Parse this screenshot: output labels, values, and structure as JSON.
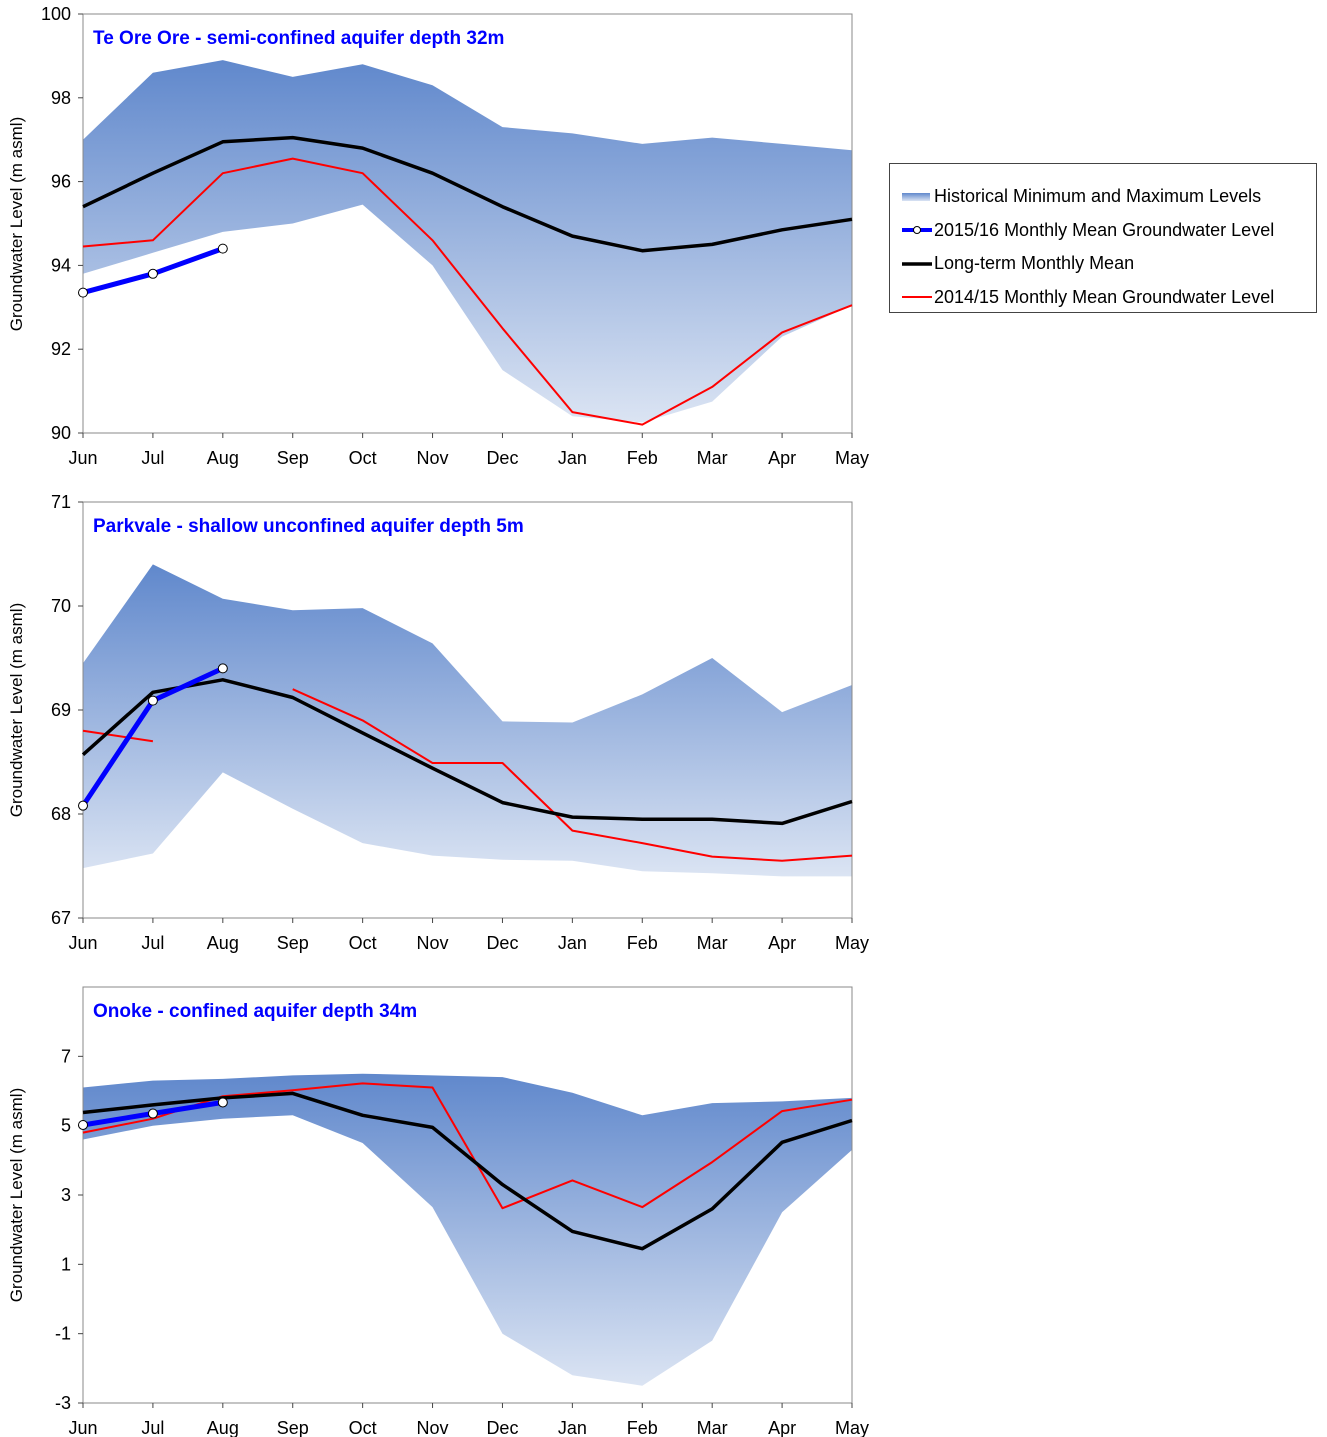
{
  "months": [
    "Jun",
    "Jul",
    "Aug",
    "Sep",
    "Oct",
    "Nov",
    "Dec",
    "Jan",
    "Feb",
    "Mar",
    "Apr",
    "May"
  ],
  "legend": [
    {
      "label": "Historical Minimum and Maximum Levels",
      "symbol": "area"
    },
    {
      "label": "2015/16 Monthly Mean Groundwater Level",
      "symbol": "blue-line-marker"
    },
    {
      "label": "Long-term Monthly Mean",
      "symbol": "black-line"
    },
    {
      "label": "2014/15 Monthly Mean Groundwater Level",
      "symbol": "red-line"
    }
  ],
  "colors": {
    "band_top": "#6088cc",
    "band_bottom": "#dbe4f3",
    "current": "#0000ff",
    "mean": "#000000",
    "previous": "#ff0000",
    "title": "#0000ff"
  },
  "chart_data": [
    {
      "type": "line",
      "title": "Te Ore Ore -  semi-confined aquifer depth 32m",
      "ylabel": "Groundwater Level (m asml)",
      "ylim": [
        90,
        100
      ],
      "yticks": [
        90,
        92,
        94,
        96,
        98,
        100
      ],
      "categories": [
        "Jun",
        "Jul",
        "Aug",
        "Sep",
        "Oct",
        "Nov",
        "Dec",
        "Jan",
        "Feb",
        "Mar",
        "Apr",
        "May"
      ],
      "band_max": [
        97.0,
        98.6,
        98.9,
        98.5,
        98.8,
        98.3,
        97.3,
        97.15,
        96.9,
        97.05,
        96.9,
        96.75
      ],
      "band_min": [
        93.8,
        94.3,
        94.8,
        95.0,
        95.45,
        94.0,
        91.5,
        90.4,
        90.25,
        90.75,
        92.3,
        93.05
      ],
      "series": [
        {
          "name": "Long-term Monthly Mean",
          "role": "mean",
          "values": [
            95.4,
            96.2,
            96.95,
            97.05,
            96.8,
            96.2,
            95.4,
            94.7,
            94.35,
            94.5,
            94.85,
            95.1
          ]
        },
        {
          "name": "2014/15 Monthly Mean Groundwater Level",
          "role": "previous",
          "values": [
            94.45,
            94.6,
            96.2,
            96.55,
            96.2,
            94.6,
            92.5,
            90.5,
            90.2,
            91.1,
            92.4,
            93.05
          ]
        },
        {
          "name": "2015/16 Monthly Mean Groundwater Level",
          "role": "current",
          "values": [
            93.35,
            93.8,
            94.4,
            null,
            null,
            null,
            null,
            null,
            null,
            null,
            null,
            null
          ]
        }
      ]
    },
    {
      "type": "line",
      "title": "Parkvale  -  shallow unconfined aquifer depth 5m",
      "ylabel": "Groundwater Level (m asml)",
      "ylim": [
        67,
        71
      ],
      "yticks": [
        67,
        68,
        69,
        70,
        71
      ],
      "categories": [
        "Jun",
        "Jul",
        "Aug",
        "Sep",
        "Oct",
        "Nov",
        "Dec",
        "Jan",
        "Feb",
        "Mar",
        "Apr",
        "May"
      ],
      "band_max": [
        69.45,
        70.4,
        70.07,
        69.96,
        69.98,
        69.64,
        68.89,
        68.88,
        69.15,
        69.5,
        68.98,
        69.24
      ],
      "band_min": [
        67.48,
        67.62,
        68.4,
        68.05,
        67.72,
        67.6,
        67.56,
        67.55,
        67.45,
        67.43,
        67.4,
        67.4
      ],
      "series": [
        {
          "name": "Long-term Monthly Mean",
          "role": "mean",
          "values": [
            68.57,
            69.17,
            69.29,
            69.12,
            68.78,
            68.44,
            68.11,
            67.97,
            67.95,
            67.95,
            67.91,
            68.12
          ]
        },
        {
          "name": "2014/15 Monthly Mean Groundwater Level",
          "role": "previous",
          "values": [
            68.8,
            68.7,
            null,
            69.2,
            68.9,
            68.49,
            68.49,
            67.84,
            67.72,
            67.59,
            67.55,
            67.6
          ]
        },
        {
          "name": "2015/16 Monthly Mean Groundwater Level",
          "role": "current",
          "values": [
            68.08,
            69.09,
            69.4,
            null,
            null,
            null,
            null,
            null,
            null,
            null,
            null,
            null
          ]
        }
      ]
    },
    {
      "type": "line",
      "title": "Onoke  -  confined aquifer depth 34m",
      "ylabel": "Groundwater Level (m asml)",
      "ylim": [
        -3,
        9
      ],
      "yticks": [
        -3,
        -1,
        1,
        3,
        5,
        7
      ],
      "categories": [
        "Jun",
        "Jul",
        "Aug",
        "Sep",
        "Oct",
        "Nov",
        "Dec",
        "Jan",
        "Feb",
        "Mar",
        "Apr",
        "May"
      ],
      "band_max": [
        6.1,
        6.3,
        6.35,
        6.45,
        6.5,
        6.45,
        6.4,
        5.95,
        5.3,
        5.65,
        5.7,
        5.8
      ],
      "band_min": [
        4.6,
        5.0,
        5.2,
        5.3,
        4.5,
        2.65,
        -1.0,
        -2.2,
        -2.5,
        -1.2,
        2.5,
        4.3
      ],
      "series": [
        {
          "name": "Long-term Monthly Mean",
          "role": "mean",
          "values": [
            5.38,
            5.6,
            5.8,
            5.93,
            5.3,
            4.95,
            3.3,
            1.95,
            1.45,
            2.6,
            4.52,
            5.15
          ]
        },
        {
          "name": "2014/15 Monthly Mean Groundwater Level",
          "role": "previous",
          "values": [
            4.8,
            5.2,
            5.85,
            6.02,
            6.22,
            6.1,
            2.62,
            3.42,
            2.65,
            3.95,
            5.42,
            5.75
          ]
        },
        {
          "name": "2015/16 Monthly Mean Groundwater Level",
          "role": "current",
          "values": [
            5.02,
            5.35,
            5.67,
            null,
            null,
            null,
            null,
            null,
            null,
            null,
            null,
            null
          ]
        }
      ]
    }
  ]
}
